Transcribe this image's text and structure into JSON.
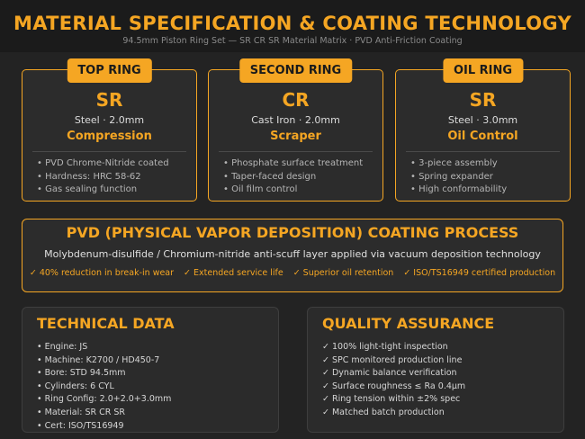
{
  "header": {
    "title": "MATERIAL SPECIFICATION & COATING TECHNOLOGY",
    "subtitle": "94.5mm Piston Ring Set — SR CR SR Material Matrix  ·  PVD Anti-Friction Coating"
  },
  "rings": [
    {
      "tab": "TOP RING",
      "code": "SR",
      "spec": "Steel  ·  2.0mm",
      "function": "Compression",
      "features": [
        "• PVD Chrome-Nitride coated",
        "• Hardness: HRC 58-62",
        "• Gas sealing function"
      ]
    },
    {
      "tab": "SECOND RING",
      "code": "CR",
      "spec": "Cast Iron  ·  2.0mm",
      "function": "Scraper",
      "features": [
        "• Phosphate surface treatment",
        "• Taper-faced design",
        "• Oil film control"
      ]
    },
    {
      "tab": "OIL RING",
      "code": "SR",
      "spec": "Steel  ·  3.0mm",
      "function": "Oil Control",
      "features": [
        "• 3-piece assembly",
        "• Spring expander",
        "• High conformability"
      ]
    }
  ],
  "pvd": {
    "title": "PVD (PHYSICAL VAPOR DEPOSITION) COATING PROCESS",
    "description": "Molybdenum-disulfide / Chromium-nitride anti-scuff layer applied via vacuum deposition technology",
    "benefits": [
      "✓ 40% reduction in break-in wear",
      "✓ Extended service life",
      "✓ Superior oil retention",
      "✓ ISO/TS16949 certified production"
    ]
  },
  "technical": {
    "title": "TECHNICAL DATA",
    "items": [
      "• Engine: JS",
      "• Machine: K2700 / HD450-7",
      "• Bore: STD 94.5mm",
      "• Cylinders: 6 CYL",
      "• Ring Config: 2.0+2.0+3.0mm",
      "• Material: SR CR SR",
      "• Cert: ISO/TS16949"
    ]
  },
  "quality": {
    "title": "QUALITY ASSURANCE",
    "items": [
      "✓ 100% light-tight inspection",
      "✓ SPC monitored production line",
      "✓ Dynamic balance verification",
      "✓ Surface roughness ≤ Ra 0.4μm",
      "✓ Ring tension within ±2% spec",
      "✓ Matched batch production"
    ]
  },
  "colors": {
    "accent": "#f5a623",
    "background": "#232323",
    "panel": "#2c2c2c"
  }
}
